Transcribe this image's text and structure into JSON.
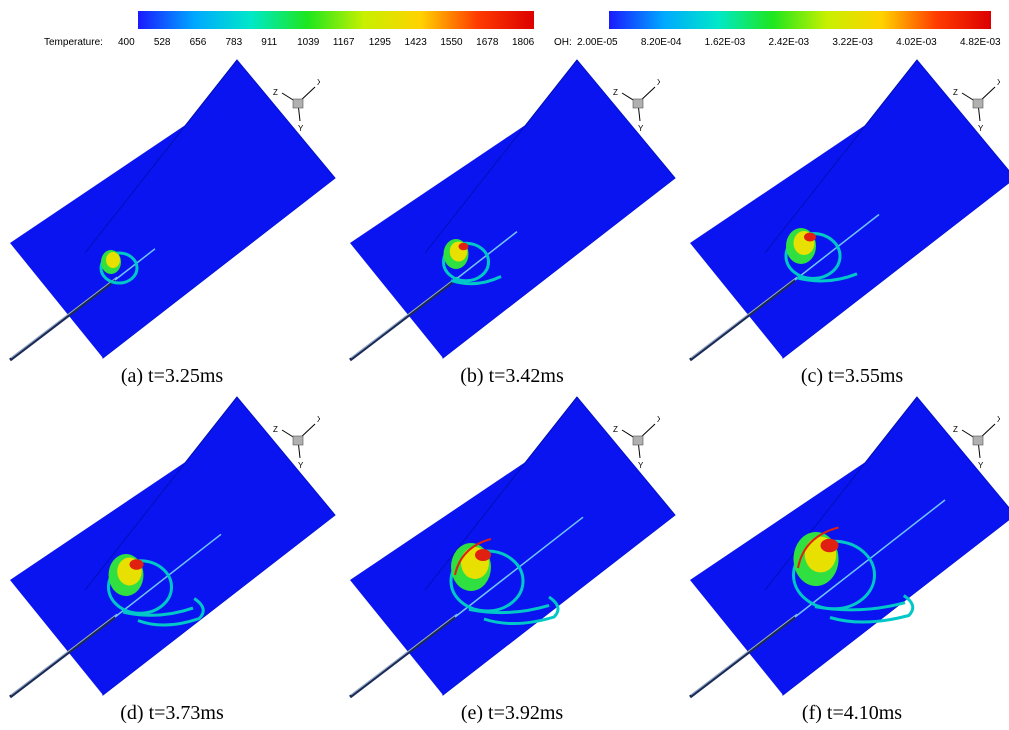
{
  "colorbars": [
    {
      "label": "Temperature:",
      "ticks": [
        "400",
        "528",
        "656",
        "783",
        "911",
        "1039",
        "1167",
        "1295",
        "1423",
        "1550",
        "1678",
        "1806"
      ],
      "colors": [
        "#1a1aff",
        "#00a8ff",
        "#00e8c8",
        "#1ee61e",
        "#c8f000",
        "#ffd200",
        "#ff3c00",
        "#dc0000"
      ]
    },
    {
      "label": "OH:",
      "ticks": [
        "2.00E-05",
        "8.20E-04",
        "1.62E-03",
        "2.42E-03",
        "3.22E-03",
        "4.02E-03",
        "4.82E-03"
      ],
      "colors": [
        "#1a1aff",
        "#00a8ff",
        "#00e8c8",
        "#1ee61e",
        "#c8f000",
        "#ffd200",
        "#ff3c00",
        "#dc0000"
      ]
    }
  ],
  "axes_labels": {
    "x": "X",
    "y": "Y",
    "z": "Z"
  },
  "panels": [
    {
      "caption": "(a) t=3.25ms",
      "stage": 0
    },
    {
      "caption": "(b) t=3.42ms",
      "stage": 1
    },
    {
      "caption": "(c) t=3.55ms",
      "stage": 2
    },
    {
      "caption": "(d) t=3.73ms",
      "stage": 3
    },
    {
      "caption": "(e) t=3.92ms",
      "stage": 4
    },
    {
      "caption": "(f) t=4.10ms",
      "stage": 5
    }
  ],
  "colors": {
    "plane": "#0a14f0",
    "plane_edge": "#0010c8",
    "flame_core": "#00c8c8",
    "flame_mid": "#30e040",
    "flame_hot": "#e8e000",
    "flame_peak": "#e02010",
    "jet": "#3060a0"
  }
}
